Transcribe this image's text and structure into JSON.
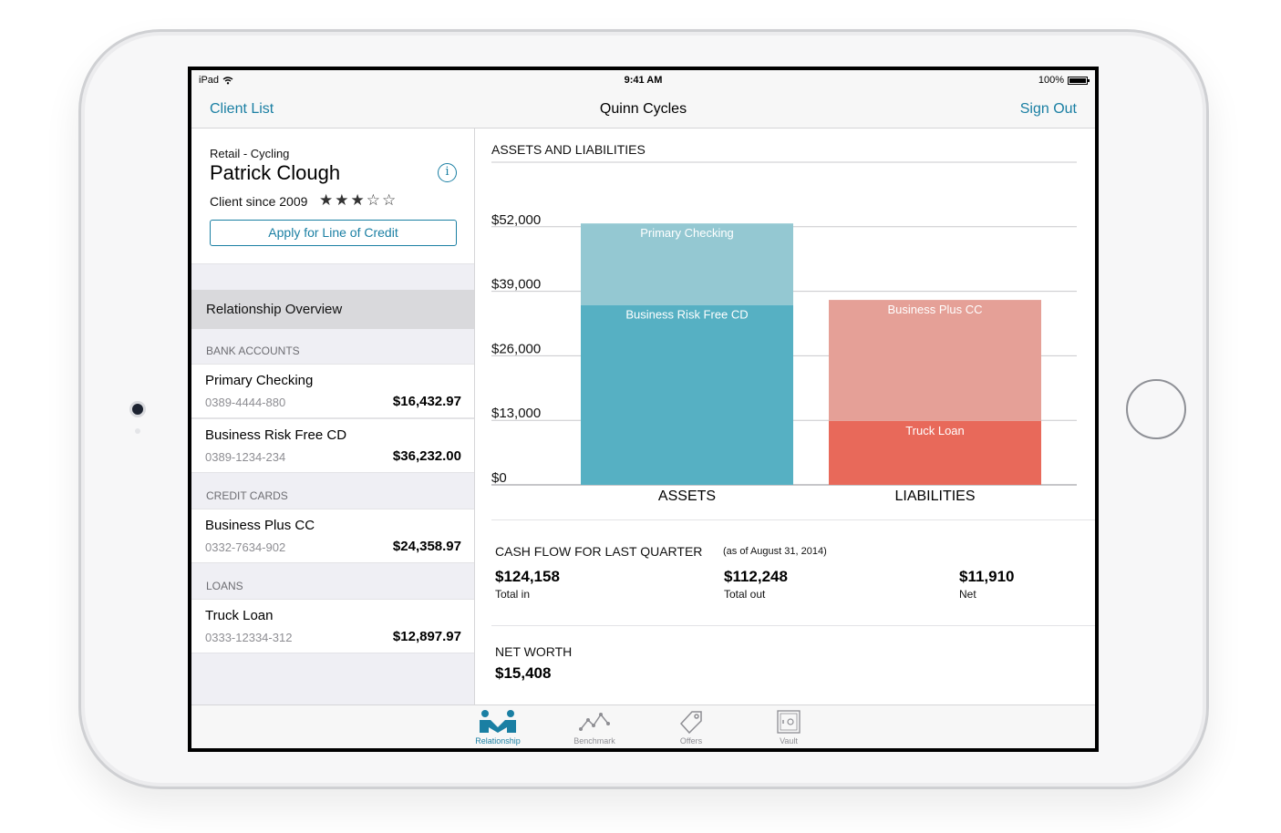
{
  "status_bar": {
    "device": "iPad",
    "time": "9:41 AM",
    "battery": "100%"
  },
  "nav": {
    "left": "Client List",
    "title": "Quinn Cycles",
    "right": "Sign Out"
  },
  "client": {
    "industry": "Retail - Cycling",
    "name": "Patrick Clough",
    "since": "Client since 2009",
    "rating": 3,
    "rating_max": 5,
    "apply_button": "Apply for Line of Credit"
  },
  "sidebar": {
    "overview_label": "Relationship Overview",
    "sections": [
      {
        "title": "BANK ACCOUNTS",
        "accounts": [
          {
            "name": "Primary Checking",
            "number": "0389-4444-880",
            "balance": "$16,432.97"
          },
          {
            "name": "Business Risk Free CD",
            "number": "0389-1234-234",
            "balance": "$36,232.00"
          }
        ]
      },
      {
        "title": "CREDIT CARDS",
        "accounts": [
          {
            "name": "Business Plus CC",
            "number": "0332-7634-902",
            "balance": "$24,358.97"
          }
        ]
      },
      {
        "title": "LOANS",
        "accounts": [
          {
            "name": "Truck Loan",
            "number": "0333-12334-312",
            "balance": "$12,897.97"
          }
        ]
      }
    ]
  },
  "chart_data": {
    "type": "bar",
    "stacked": true,
    "title": "ASSETS AND LIABILITIES",
    "categories": [
      "ASSETS",
      "LIABILITIES"
    ],
    "y_ticks": [
      "$52,000",
      "$39,000",
      "$26,000",
      "$13,000",
      "$0"
    ],
    "y_tick_values": [
      52000,
      39000,
      26000,
      13000,
      0
    ],
    "ylim": [
      0,
      65000
    ],
    "stacks": [
      {
        "category": "ASSETS",
        "segments": [
          {
            "name": "Business Risk Free CD",
            "value": 36232,
            "color": "#56b0c3"
          },
          {
            "name": "Primary Checking",
            "value": 16433,
            "color": "#94c8d2"
          }
        ]
      },
      {
        "category": "LIABILITIES",
        "segments": [
          {
            "name": "Truck Loan",
            "value": 12898,
            "color": "#e8695a"
          },
          {
            "name": "Business Plus CC",
            "value": 24359,
            "color": "#e5a097"
          }
        ]
      }
    ]
  },
  "cash_flow": {
    "title": "CASH FLOW FOR LAST QUARTER",
    "as_of": "(as of August 31, 2014)",
    "total_in": "$124,158",
    "total_in_label": "Total in",
    "total_out": "$112,248",
    "total_out_label": "Total out",
    "net": "$11,910",
    "net_label": "Net"
  },
  "net_worth": {
    "title": "NET WORTH",
    "value": "$15,408"
  },
  "tabs": [
    {
      "label": "Relationship",
      "icon": "handshake-icon",
      "active": true
    },
    {
      "label": "Benchmark",
      "icon": "trend-line-icon",
      "active": false
    },
    {
      "label": "Offers",
      "icon": "tag-icon",
      "active": false
    },
    {
      "label": "Vault",
      "icon": "vault-icon",
      "active": false
    }
  ],
  "colors": {
    "accent": "#1a7fa3"
  }
}
